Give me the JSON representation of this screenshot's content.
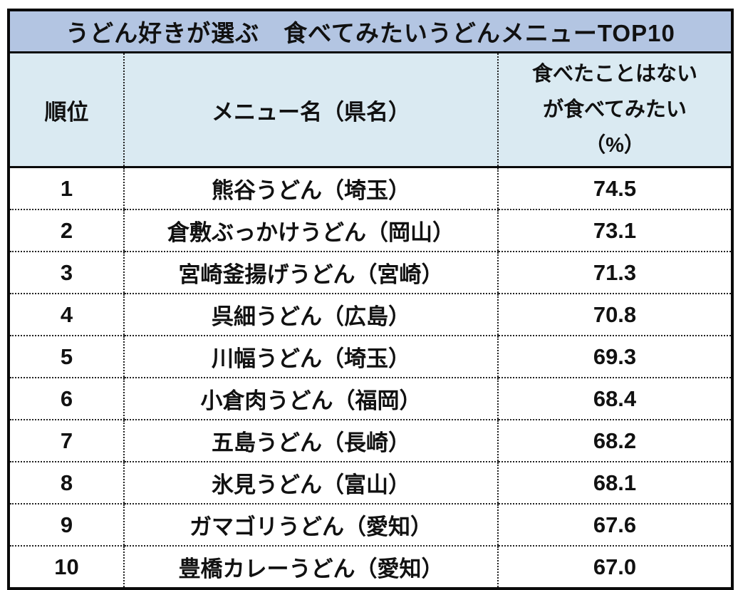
{
  "table": {
    "title": "うどん好きが選ぶ　食べてみたいうどんメニューTOP10",
    "columns": {
      "rank": "順位",
      "menu": "メニュー名（県名）",
      "pct_line1": "食べたことはない",
      "pct_line2": "が食べてみたい",
      "pct_line3": "（%）"
    },
    "rows": [
      {
        "rank": "1",
        "menu": "熊谷うどん（埼玉）",
        "pct": "74.5"
      },
      {
        "rank": "2",
        "menu": "倉敷ぶっかけうどん（岡山）",
        "pct": "73.1"
      },
      {
        "rank": "3",
        "menu": "宮崎釜揚げうどん（宮崎）",
        "pct": "71.3"
      },
      {
        "rank": "4",
        "menu": "呉細うどん（広島）",
        "pct": "70.8"
      },
      {
        "rank": "5",
        "menu": "川幅うどん（埼玉）",
        "pct": "69.3"
      },
      {
        "rank": "6",
        "menu": "小倉肉うどん（福岡）",
        "pct": "68.4"
      },
      {
        "rank": "7",
        "menu": "五島うどん（長崎）",
        "pct": "68.2"
      },
      {
        "rank": "8",
        "menu": "氷見うどん（富山）",
        "pct": "68.1"
      },
      {
        "rank": "9",
        "menu": "ガマゴリうどん（愛知）",
        "pct": "67.6"
      },
      {
        "rank": "10",
        "menu": "豊橋カレーうどん（愛知）",
        "pct": "67.0"
      }
    ]
  },
  "colors": {
    "title_bg": "#b3c5e2",
    "header_bg": "#daeaf2",
    "border": "#0a0a0a",
    "text": "#111111"
  },
  "chart_data": {
    "type": "table",
    "title": "うどん好きが選ぶ　食べてみたいうどんメニューTOP10",
    "columns": [
      "順位",
      "メニュー名（県名）",
      "食べたことはないが食べてみたい（%）"
    ],
    "rows": [
      [
        1,
        "熊谷うどん（埼玉）",
        74.5
      ],
      [
        2,
        "倉敷ぶっかけうどん（岡山）",
        73.1
      ],
      [
        3,
        "宮崎釜揚げうどん（宮崎）",
        71.3
      ],
      [
        4,
        "呉細うどん（広島）",
        70.8
      ],
      [
        5,
        "川幅うどん（埼玉）",
        69.3
      ],
      [
        6,
        "小倉肉うどん（福岡）",
        68.4
      ],
      [
        7,
        "五島うどん（長崎）",
        68.2
      ],
      [
        8,
        "氷見うどん（富山）",
        68.1
      ],
      [
        9,
        "ガマゴリうどん（愛知）",
        67.6
      ],
      [
        10,
        "豊橋カレーうどん（愛知）",
        67.0
      ]
    ]
  }
}
